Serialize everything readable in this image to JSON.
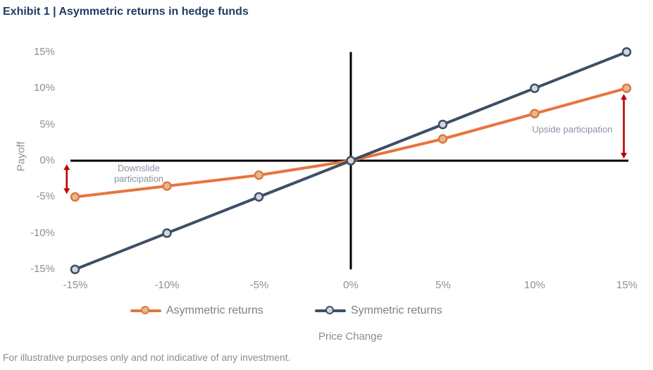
{
  "title": "Exhibit 1 | Asymmetric returns in hedge funds",
  "footnote": "For illustrative purposes only and not indicative of any investment.",
  "chart_data": {
    "type": "line",
    "title": "Exhibit 1 | Asymmetric returns in hedge funds",
    "xlabel": "Price Change",
    "ylabel": "Payoff",
    "x": [
      -15,
      -10,
      -5,
      0,
      5,
      10,
      15
    ],
    "x_tick_labels": [
      "-15%",
      "-10%",
      "-5%",
      "0%",
      "5%",
      "10%",
      "15%"
    ],
    "y_ticks": [
      15,
      10,
      5,
      0,
      -5,
      -10,
      -15
    ],
    "y_tick_labels": [
      "15%",
      "10%",
      "5%",
      "0%",
      "-5%",
      "-10%",
      "-15%"
    ],
    "xlim": [
      -15.25,
      15.1
    ],
    "ylim": [
      -15,
      15
    ],
    "grid": false,
    "legend_position": "bottom",
    "series": [
      {
        "name": "Asymmetric returns",
        "values": [
          -5,
          -3.5,
          -2,
          0,
          3,
          6.5,
          10
        ],
        "color": "#e8743c",
        "marker_fill": "#d6be92"
      },
      {
        "name": "Symmetric returns",
        "values": [
          -15,
          -10,
          -5,
          0,
          5,
          10,
          15
        ],
        "color": "#3c4f66",
        "marker_fill": "#d3d6db"
      }
    ],
    "annotations": [
      {
        "text": "Downslide participation",
        "arrow": {
          "x": -15.45,
          "y1": -0.5,
          "y2": -4.6
        },
        "color": "#c00000"
      },
      {
        "text": "Upside participation",
        "arrow": {
          "x": 14.85,
          "y1": 9.2,
          "y2": 0.3
        },
        "color": "#c00000"
      }
    ]
  },
  "colors": {
    "title_text": "#1f3c64",
    "axis_line": "#000000",
    "tick_text": "#909090",
    "annotation_text": "#8a93a3",
    "arrow": "#c00000",
    "legend_text": "#808080",
    "footnote_text": "#8c8c8c"
  }
}
